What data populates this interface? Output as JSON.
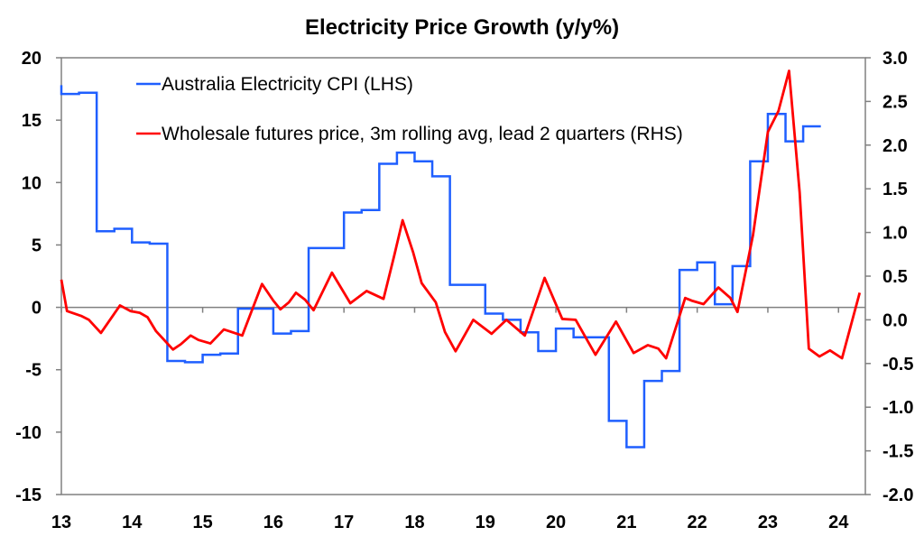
{
  "chart_data": {
    "type": "line",
    "title": "Electricity Price Growth (y/y%)",
    "xlabel": "",
    "ylabel": "",
    "x_ticks": [
      "13",
      "14",
      "15",
      "16",
      "17",
      "18",
      "19",
      "20",
      "21",
      "22",
      "23",
      "24"
    ],
    "x_tick_values": [
      2013,
      2014,
      2015,
      2016,
      2017,
      2018,
      2019,
      2020,
      2021,
      2022,
      2023,
      2024
    ],
    "xlim": [
      2013,
      2024.38
    ],
    "ylim_left": [
      -15,
      20
    ],
    "ylim_right": [
      -2.0,
      3.0
    ],
    "y_ticks_left": [
      "20",
      "15",
      "10",
      "5",
      "0",
      "-5",
      "-10",
      "-15"
    ],
    "y_tick_values_left": [
      20,
      15,
      10,
      5,
      0,
      -5,
      -10,
      -15
    ],
    "y_ticks_right": [
      "3.0",
      "2.5",
      "2.0",
      "1.5",
      "1.0",
      "0.5",
      "0.0",
      "-0.5",
      "-1.0",
      "-1.5",
      "-2.0"
    ],
    "y_tick_values_right": [
      3.0,
      2.5,
      2.0,
      1.5,
      1.0,
      0.5,
      0.0,
      -0.5,
      -1.0,
      -1.5,
      -2.0
    ],
    "grid": false,
    "legend_placement": "top",
    "series": [
      {
        "name": "Australia Electricity CPI (LHS)",
        "axis": "left",
        "style": "step",
        "color": "#1f5fff",
        "quarter_start": 2013.0,
        "quarter_step": 0.25,
        "values": [
          17.1,
          17.2,
          6.1,
          6.3,
          5.2,
          5.1,
          -4.3,
          -4.4,
          -3.8,
          -3.7,
          -0.1,
          -0.1,
          -2.1,
          -1.9,
          4.75,
          4.75,
          7.6,
          7.8,
          11.5,
          12.4,
          11.7,
          10.5,
          1.8,
          1.8,
          -0.5,
          -1.0,
          -2.0,
          -3.5,
          -1.7,
          -2.4,
          -2.4,
          -9.1,
          -11.2,
          -5.9,
          -5.1,
          3.0,
          3.6,
          0.25,
          3.3,
          11.7,
          15.5,
          13.3,
          14.5
        ]
      },
      {
        "name": "Wholesale futures price, 3m rolling avg, lead 2 quarters (RHS)",
        "axis": "right",
        "style": "line",
        "color": "#ff0000",
        "x": [
          2013.0,
          2013.08,
          2013.28,
          2013.39,
          2013.56,
          2013.83,
          2013.98,
          2014.11,
          2014.22,
          2014.34,
          2014.58,
          2014.69,
          2014.83,
          2014.94,
          2015.11,
          2015.3,
          2015.45,
          2015.56,
          2015.84,
          2016.0,
          2016.1,
          2016.22,
          2016.32,
          2016.45,
          2016.57,
          2016.83,
          2017.09,
          2017.32,
          2017.56,
          2017.71,
          2017.83,
          2017.98,
          2018.1,
          2018.3,
          2018.43,
          2018.58,
          2018.83,
          2019.09,
          2019.3,
          2019.56,
          2019.84,
          2020.09,
          2020.28,
          2020.56,
          2020.85,
          2021.1,
          2021.3,
          2021.45,
          2021.56,
          2021.83,
          2021.92,
          2022.09,
          2022.3,
          2022.47,
          2022.57,
          2022.79,
          2023.0,
          2023.15,
          2023.3,
          2023.45,
          2023.58,
          2023.73,
          2023.88,
          2024.05,
          2024.3
        ],
        "values": [
          0.46,
          0.1,
          0.045,
          0.0,
          -0.15,
          0.165,
          0.1,
          0.08,
          0.03,
          -0.13,
          -0.34,
          -0.28,
          -0.18,
          -0.23,
          -0.27,
          -0.11,
          -0.15,
          -0.18,
          0.41,
          0.22,
          0.12,
          0.2,
          0.31,
          0.23,
          0.11,
          0.54,
          0.19,
          0.33,
          0.24,
          0.73,
          1.14,
          0.77,
          0.42,
          0.2,
          -0.14,
          -0.36,
          0.0,
          -0.16,
          0.0,
          -0.18,
          0.48,
          0.01,
          0.0,
          -0.4,
          -0.02,
          -0.38,
          -0.29,
          -0.33,
          -0.44,
          0.25,
          0.22,
          0.18,
          0.37,
          0.25,
          0.09,
          0.97,
          2.15,
          2.39,
          2.85,
          1.46,
          -0.33,
          -0.42,
          -0.35,
          -0.44,
          0.31
        ]
      }
    ]
  }
}
